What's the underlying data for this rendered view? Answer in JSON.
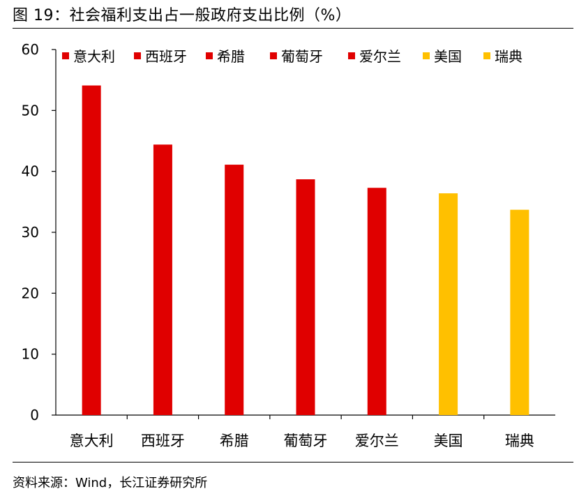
{
  "figure": {
    "title": "图 19：社会福利支出占一般政府支出比例（%）",
    "source": "资料来源：Wind，长江证券研究所"
  },
  "chart_data": {
    "type": "bar",
    "categories": [
      "意大利",
      "西班牙",
      "希腊",
      "葡萄牙",
      "爱尔兰",
      "美国",
      "瑞典"
    ],
    "values": [
      54.1,
      44.4,
      41.1,
      38.7,
      37.3,
      36.4,
      33.7
    ],
    "colors": [
      "#E00000",
      "#E00000",
      "#E00000",
      "#E00000",
      "#E00000",
      "#FFC000",
      "#FFC000"
    ],
    "ylim": [
      0,
      60
    ],
    "yticks": [
      0,
      10,
      20,
      30,
      40,
      50,
      60
    ],
    "legend": {
      "position": "top",
      "entries": [
        {
          "label": "意大利",
          "color": "#E00000"
        },
        {
          "label": "西班牙",
          "color": "#E00000"
        },
        {
          "label": "希腊",
          "color": "#E00000"
        },
        {
          "label": "葡萄牙",
          "color": "#E00000"
        },
        {
          "label": "爱尔兰",
          "color": "#E00000"
        },
        {
          "label": "美国",
          "color": "#FFC000"
        },
        {
          "label": "瑞典",
          "color": "#FFC000"
        }
      ]
    },
    "grid": false
  }
}
